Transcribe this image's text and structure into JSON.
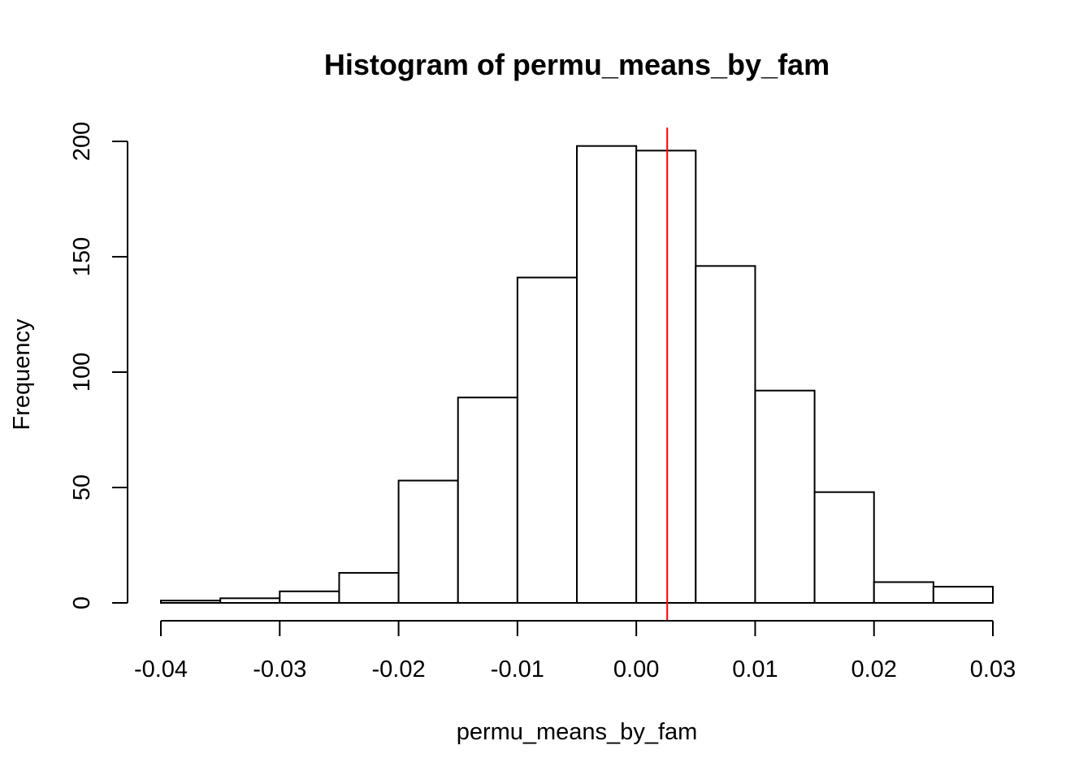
{
  "chart_data": {
    "type": "bar",
    "title": "Histogram of permu_means_by_fam",
    "xlabel": "permu_means_by_fam",
    "ylabel": "Frequency",
    "bin_edges": [
      -0.04,
      -0.035,
      -0.03,
      -0.025,
      -0.02,
      -0.015,
      -0.01,
      -0.005,
      0.0,
      0.005,
      0.01,
      0.015,
      0.02,
      0.025,
      0.03
    ],
    "values": [
      1,
      2,
      5,
      13,
      53,
      89,
      141,
      198,
      196,
      146,
      92,
      48,
      9,
      7
    ],
    "xlim": [
      -0.04,
      0.03
    ],
    "ylim": [
      0,
      200
    ],
    "x_ticks": [
      -0.04,
      -0.03,
      -0.02,
      -0.01,
      0.0,
      0.01,
      0.02,
      0.03
    ],
    "x_tick_labels": [
      "-0.04",
      "-0.03",
      "-0.02",
      "-0.01",
      "0.00",
      "0.01",
      "0.02",
      "0.03"
    ],
    "y_ticks": [
      0,
      50,
      100,
      150,
      200
    ],
    "y_tick_labels": [
      "0",
      "50",
      "100",
      "150",
      "200"
    ],
    "reference_line": {
      "x": 0.0026,
      "color": "#ff0000"
    },
    "bar_fill": "#ffffff",
    "bar_stroke": "#000000",
    "grid": false
  }
}
